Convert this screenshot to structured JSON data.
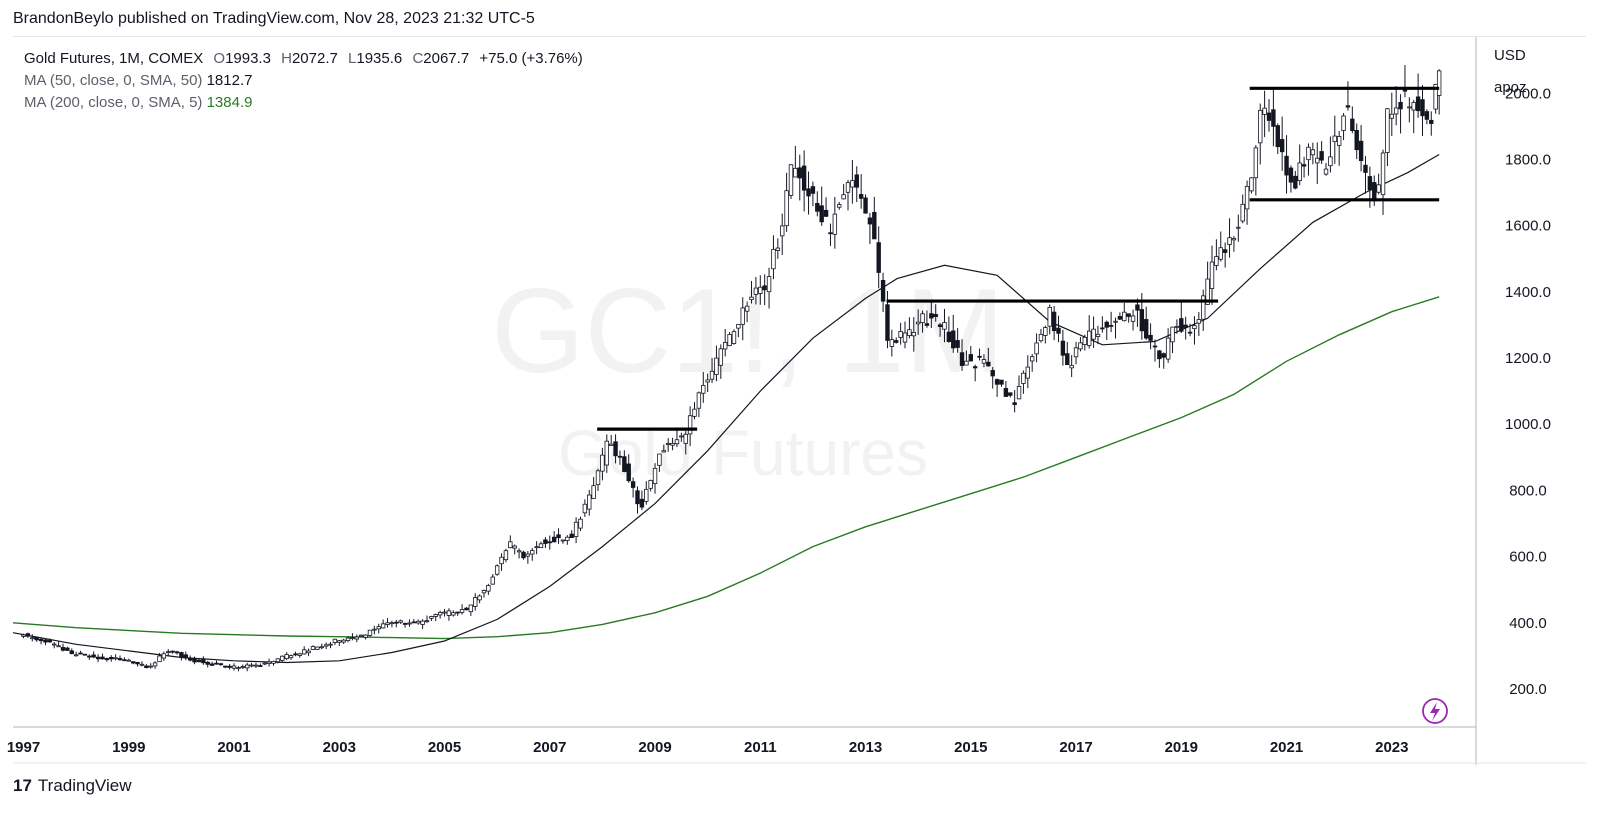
{
  "header": {
    "credit": "BrandonBeylo published on TradingView.com, Nov 28, 2023 21:32 UTC-5"
  },
  "legend": {
    "symbol": "Gold Futures, 1M, COMEX",
    "open_label": "O",
    "open": "1993.3",
    "high_label": "H",
    "high": "2072.7",
    "low_label": "L",
    "low": "1935.6",
    "close_label": "C",
    "close": "2067.7",
    "change": "+75.0 (+3.76%)",
    "ma50_label": "MA (50, close, 0, SMA, 50)",
    "ma50_value": "1812.7",
    "ma200_label": "MA (200, close, 0, SMA, 5)",
    "ma200_value": "1384.9"
  },
  "price_axis": {
    "currency": "USD",
    "mode": "apoz"
  },
  "watermark": {
    "symbol": "GC1!, 1M",
    "name": "Gold Futures"
  },
  "footer": {
    "brand": "TradingView",
    "logo": "17"
  },
  "colors": {
    "candle": "#131722",
    "ma50": "#131722",
    "ma200": "#2a7a24",
    "watermark": "#f2f2f2",
    "flash": "#9c27b0"
  },
  "chart_data": {
    "type": "candlestick",
    "x_ticks": [
      "1997",
      "1999",
      "2001",
      "2003",
      "2005",
      "2007",
      "2009",
      "2011",
      "2013",
      "2015",
      "2017",
      "2019",
      "2021",
      "2023"
    ],
    "y_ticks": [
      "200.0",
      "400.0",
      "600.0",
      "800.0",
      "1000.0",
      "1200.0",
      "1400.0",
      "1600.0",
      "1800.0",
      "2000.0"
    ],
    "xlim": [
      1996.8,
      2024.6
    ],
    "ylim": [
      85,
      2170
    ],
    "price_path": [
      [
        1997.0,
        365
      ],
      [
        1997.5,
        345
      ],
      [
        1998.0,
        305
      ],
      [
        1998.5,
        295
      ],
      [
        1999.0,
        288
      ],
      [
        1999.5,
        265
      ],
      [
        1999.8,
        320
      ],
      [
        2000.2,
        290
      ],
      [
        2000.6,
        278
      ],
      [
        2001.0,
        266
      ],
      [
        2001.4,
        268
      ],
      [
        2001.8,
        282
      ],
      [
        2002.0,
        295
      ],
      [
        2002.5,
        318
      ],
      [
        2003.0,
        345
      ],
      [
        2003.5,
        360
      ],
      [
        2004.0,
        405
      ],
      [
        2004.5,
        395
      ],
      [
        2005.0,
        425
      ],
      [
        2005.5,
        440
      ],
      [
        2005.9,
        510
      ],
      [
        2006.3,
        640
      ],
      [
        2006.6,
        600
      ],
      [
        2007.0,
        650
      ],
      [
        2007.5,
        665
      ],
      [
        2007.9,
        800
      ],
      [
        2008.2,
        950
      ],
      [
        2008.5,
        870
      ],
      [
        2008.8,
        745
      ],
      [
        2009.2,
        920
      ],
      [
        2009.6,
        960
      ],
      [
        2010.0,
        1110
      ],
      [
        2010.4,
        1230
      ],
      [
        2010.8,
        1360
      ],
      [
        2011.2,
        1430
      ],
      [
        2011.5,
        1600
      ],
      [
        2011.7,
        1800
      ],
      [
        2012.0,
        1690
      ],
      [
        2012.4,
        1590
      ],
      [
        2012.8,
        1760
      ],
      [
        2013.2,
        1600
      ],
      [
        2013.5,
        1250
      ],
      [
        2013.9,
        1270
      ],
      [
        2014.2,
        1320
      ],
      [
        2014.6,
        1290
      ],
      [
        2014.9,
        1190
      ],
      [
        2015.3,
        1190
      ],
      [
        2015.6,
        1120
      ],
      [
        2015.9,
        1070
      ],
      [
        2016.3,
        1230
      ],
      [
        2016.6,
        1340
      ],
      [
        2016.9,
        1170
      ],
      [
        2017.2,
        1250
      ],
      [
        2017.6,
        1290
      ],
      [
        2017.9,
        1320
      ],
      [
        2018.2,
        1340
      ],
      [
        2018.5,
        1250
      ],
      [
        2018.7,
        1200
      ],
      [
        2019.0,
        1300
      ],
      [
        2019.4,
        1300
      ],
      [
        2019.7,
        1500
      ],
      [
        2020.1,
        1580
      ],
      [
        2020.4,
        1750
      ],
      [
        2020.6,
        1970
      ],
      [
        2020.9,
        1880
      ],
      [
        2021.2,
        1720
      ],
      [
        2021.5,
        1810
      ],
      [
        2021.8,
        1780
      ],
      [
        2022.2,
        1950
      ],
      [
        2022.5,
        1800
      ],
      [
        2022.8,
        1650
      ],
      [
        2023.0,
        1930
      ],
      [
        2023.3,
        1990
      ],
      [
        2023.6,
        1950
      ],
      [
        2023.8,
        1870
      ],
      [
        2023.9,
        2060
      ]
    ],
    "ma50": [
      [
        1996.8,
        370
      ],
      [
        1998.0,
        335
      ],
      [
        1999.0,
        315
      ],
      [
        2000.0,
        295
      ],
      [
        2001.0,
        285
      ],
      [
        2002.0,
        280
      ],
      [
        2003.0,
        285
      ],
      [
        2004.0,
        310
      ],
      [
        2005.0,
        345
      ],
      [
        2006.0,
        410
      ],
      [
        2007.0,
        510
      ],
      [
        2008.0,
        630
      ],
      [
        2009.0,
        760
      ],
      [
        2010.0,
        920
      ],
      [
        2011.0,
        1100
      ],
      [
        2012.0,
        1260
      ],
      [
        2013.0,
        1380
      ],
      [
        2013.6,
        1440
      ],
      [
        2014.5,
        1480
      ],
      [
        2015.5,
        1450
      ],
      [
        2016.5,
        1310
      ],
      [
        2017.5,
        1240
      ],
      [
        2018.5,
        1250
      ],
      [
        2019.5,
        1320
      ],
      [
        2020.5,
        1470
      ],
      [
        2021.5,
        1610
      ],
      [
        2022.5,
        1700
      ],
      [
        2023.3,
        1760
      ],
      [
        2023.9,
        1815
      ]
    ],
    "ma200": [
      [
        1996.8,
        400
      ],
      [
        1998.0,
        385
      ],
      [
        2000.0,
        368
      ],
      [
        2002.0,
        360
      ],
      [
        2003.0,
        358
      ],
      [
        2004.0,
        355
      ],
      [
        2005.0,
        352
      ],
      [
        2006.0,
        358
      ],
      [
        2007.0,
        370
      ],
      [
        2008.0,
        395
      ],
      [
        2009.0,
        430
      ],
      [
        2010.0,
        480
      ],
      [
        2011.0,
        550
      ],
      [
        2012.0,
        630
      ],
      [
        2013.0,
        690
      ],
      [
        2014.0,
        740
      ],
      [
        2015.0,
        790
      ],
      [
        2016.0,
        840
      ],
      [
        2017.0,
        900
      ],
      [
        2018.0,
        960
      ],
      [
        2019.0,
        1020
      ],
      [
        2020.0,
        1090
      ],
      [
        2021.0,
        1190
      ],
      [
        2022.0,
        1270
      ],
      [
        2023.0,
        1340
      ],
      [
        2023.9,
        1385
      ]
    ],
    "horizontal_levels": [
      {
        "from": 2007.9,
        "to": 2009.8,
        "price": 985
      },
      {
        "from": 2013.4,
        "to": 2019.7,
        "price": 1372
      },
      {
        "from": 2020.3,
        "to": 2023.9,
        "price": 2015
      },
      {
        "from": 2020.3,
        "to": 2023.9,
        "price": 1678
      }
    ],
    "last_candle": {
      "open": 1993.3,
      "high": 2072.7,
      "low": 1935.6,
      "close": 2067.7
    }
  }
}
